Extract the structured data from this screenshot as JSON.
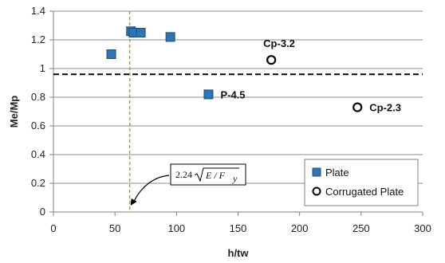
{
  "chart_data": {
    "type": "scatter",
    "xlabel": "h/tw",
    "ylabel": "Me/Mp",
    "xlim": [
      0,
      300
    ],
    "ylim": [
      0,
      1.4
    ],
    "xticks": [
      0,
      50,
      100,
      150,
      200,
      250,
      300
    ],
    "yticks": [
      0,
      0.2,
      0.4,
      0.6,
      0.8,
      1,
      1.2,
      1.4
    ],
    "xtick_labels": [
      "0",
      "50",
      "100",
      "150",
      "200",
      "250",
      "300"
    ],
    "ytick_labels": [
      "0",
      "0.2",
      "0.4",
      "0.6",
      "0.8",
      "1",
      "1.2",
      "1.4"
    ],
    "grid": "horizontal",
    "legend_position": "bottom-right",
    "series": [
      {
        "name": "Plate",
        "marker": "filled-square",
        "color": "#2E75B6",
        "points": [
          {
            "x": 47,
            "y": 1.1
          },
          {
            "x": 63,
            "y": 1.26
          },
          {
            "x": 65,
            "y": 1.25
          },
          {
            "x": 71,
            "y": 1.25
          },
          {
            "x": 95,
            "y": 1.22
          },
          {
            "x": 126,
            "y": 0.82,
            "label": "P-4.5"
          }
        ]
      },
      {
        "name": "Corrugated Plate",
        "marker": "open-circle",
        "color": "#000000",
        "points": [
          {
            "x": 177,
            "y": 1.06,
            "label": "Cp-3.2"
          },
          {
            "x": 247,
            "y": 0.73,
            "label": "Cp-2.3"
          }
        ]
      }
    ],
    "reference_lines": [
      {
        "orientation": "horizontal",
        "y": 0.96,
        "style": "dashed",
        "color": "#000000"
      },
      {
        "orientation": "vertical",
        "x": 62,
        "style": "dashed",
        "color": "#8BA85A"
      }
    ],
    "annotation": {
      "coef": "2.24",
      "expr": "E / F",
      "subscript": "y",
      "points_to": {
        "x": 62,
        "y": 0.05
      }
    }
  }
}
